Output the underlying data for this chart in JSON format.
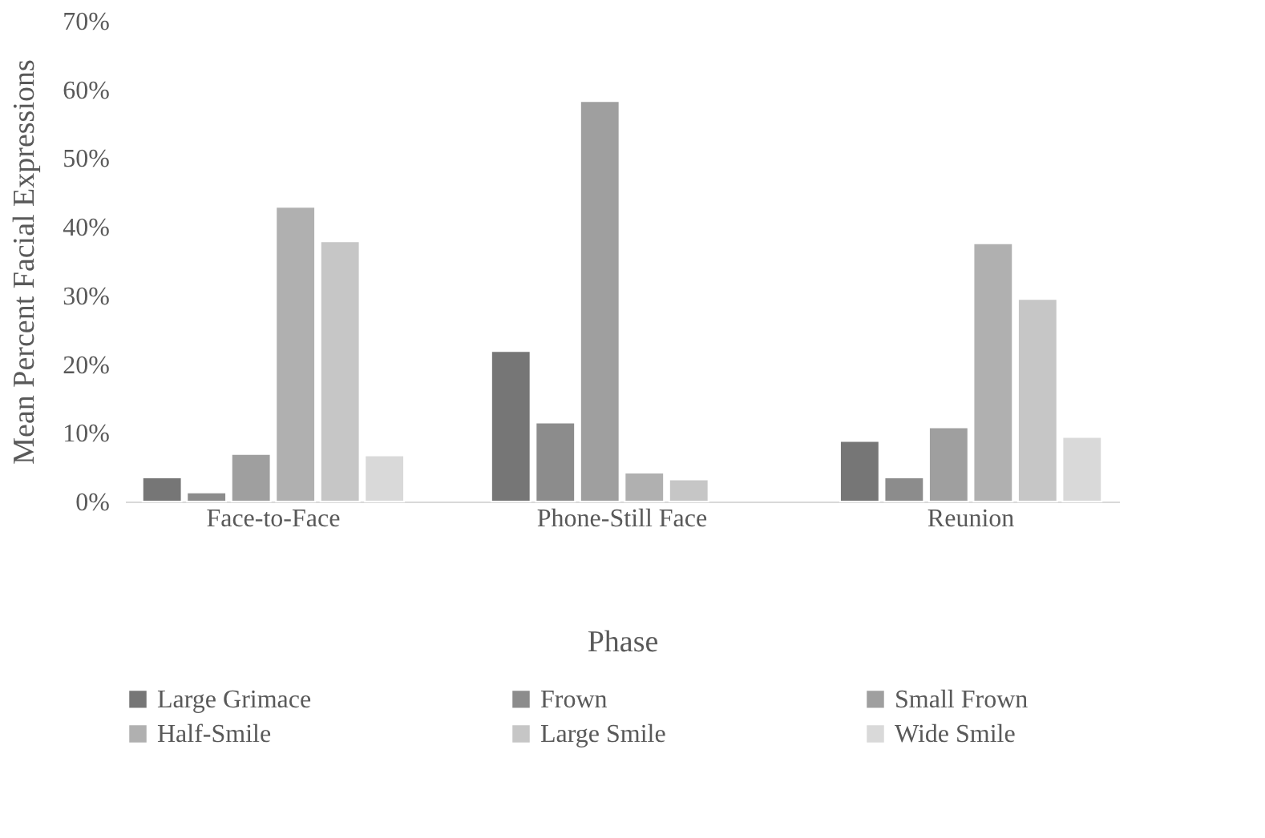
{
  "chart_data": {
    "type": "bar",
    "xlabel": "Phase",
    "ylabel": "Mean Percent Facial Expressions",
    "categories": [
      "Face-to-Face",
      "Phone-Still Face",
      "Reunion"
    ],
    "series": [
      {
        "name": "Large Grimace",
        "color": "#767676",
        "values": [
          3.5,
          21.9,
          8.8
        ]
      },
      {
        "name": "Frown",
        "color": "#8c8c8c",
        "values": [
          1.3,
          11.5,
          3.5
        ]
      },
      {
        "name": "Small Frown",
        "color": "#9f9f9f",
        "values": [
          6.9,
          58.3,
          10.8
        ]
      },
      {
        "name": "Half-Smile",
        "color": "#b0b0b0",
        "values": [
          42.9,
          4.2,
          37.6
        ]
      },
      {
        "name": "Large Smile",
        "color": "#c6c6c6",
        "values": [
          37.9,
          3.2,
          29.5
        ]
      },
      {
        "name": "Wide Smile",
        "color": "#d9d9d9",
        "values": [
          6.7,
          null,
          9.4
        ]
      }
    ],
    "ylim": [
      0,
      70
    ],
    "yticks": [
      {
        "value": 0,
        "label": "0%"
      },
      {
        "value": 10,
        "label": "10%"
      },
      {
        "value": 20,
        "label": "20%"
      },
      {
        "value": 30,
        "label": "30%"
      },
      {
        "value": 40,
        "label": "40%"
      },
      {
        "value": 50,
        "label": "50%"
      },
      {
        "value": 60,
        "label": "60%"
      },
      {
        "value": 70,
        "label": "70%"
      }
    ],
    "grid": false,
    "legend": "bottom"
  }
}
